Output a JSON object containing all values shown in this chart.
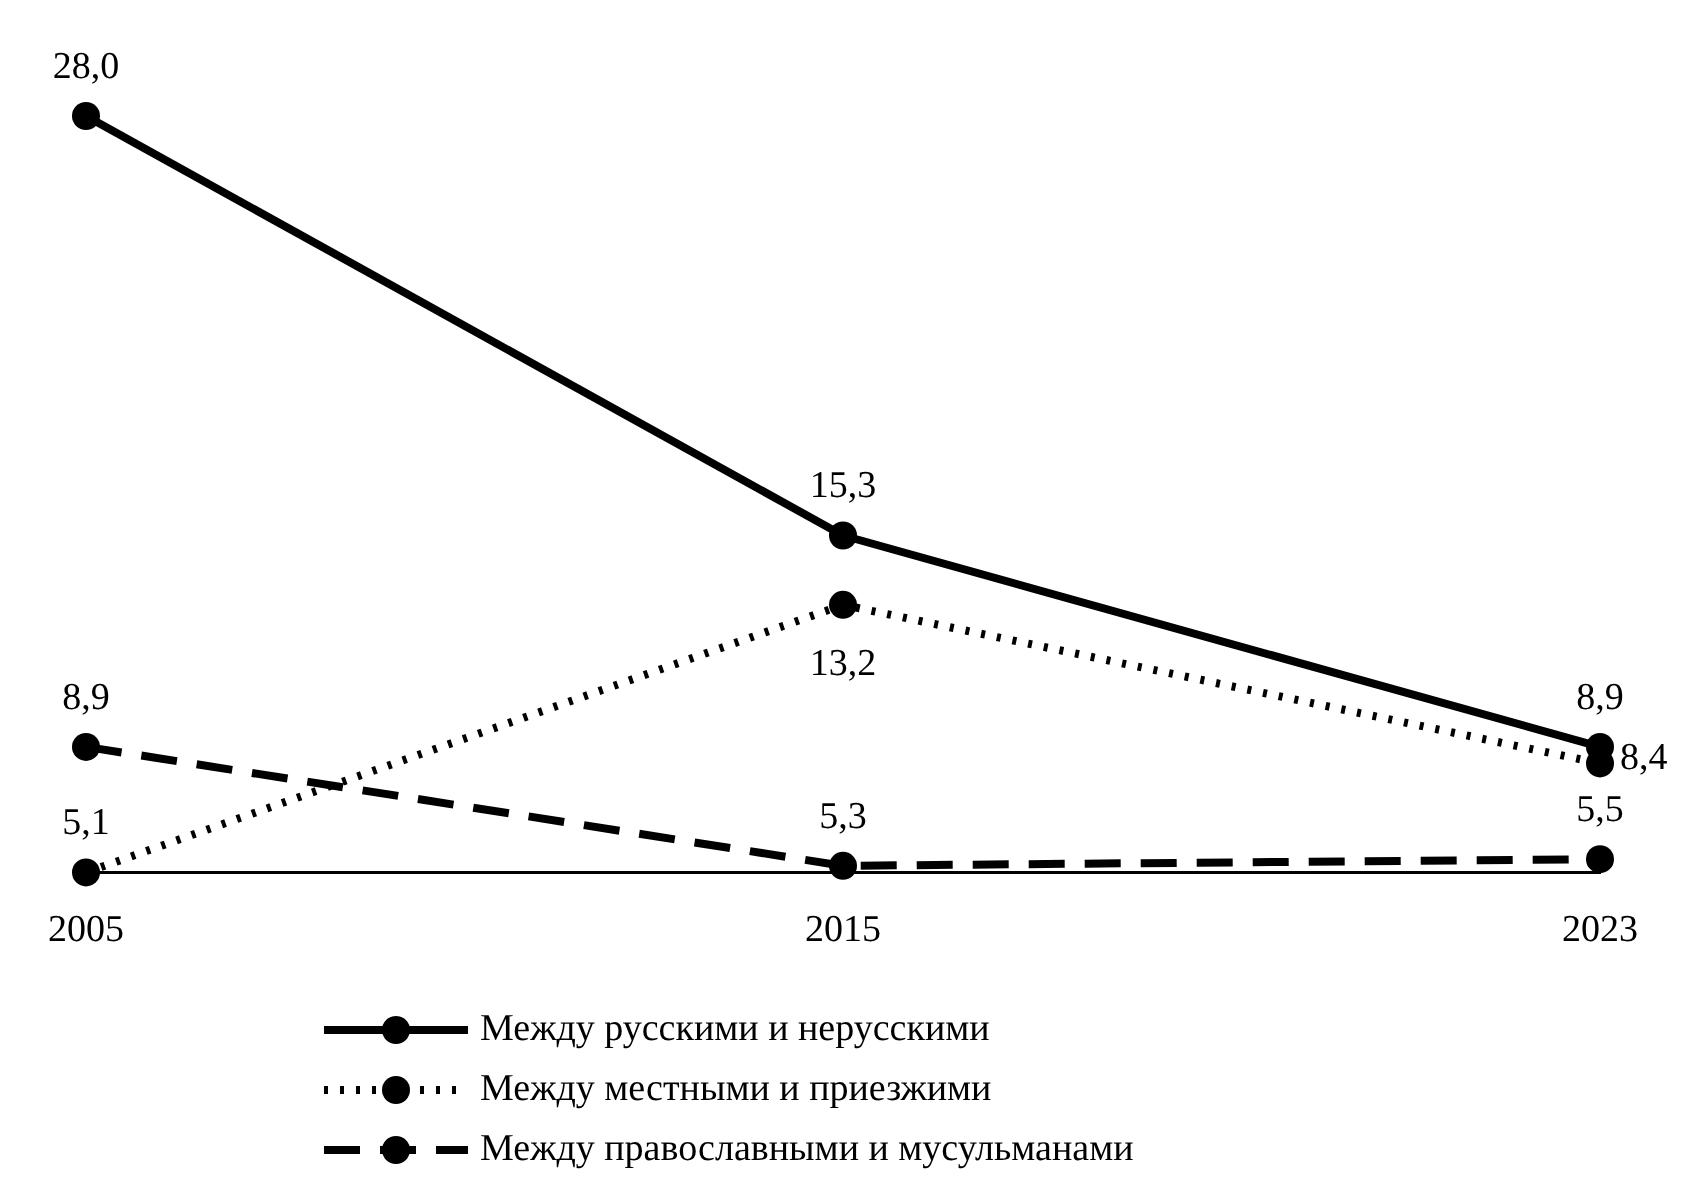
{
  "chart_data": {
    "type": "line",
    "categories": [
      "2005",
      "2015",
      "2023"
    ],
    "tick_labels": "x",
    "grid": false,
    "marker": "circle",
    "legend": "bottom",
    "series": [
      {
        "name": "Между русскими и нерусскими",
        "color": "#000000",
        "line_style": "solid",
        "values": [
          28.0,
          15.3,
          8.9
        ],
        "value_labels": [
          "28,0",
          "15,3",
          "8,9"
        ]
      },
      {
        "name": "Между местными и приезжими",
        "color": "#000000",
        "line_style": "dotted",
        "values": [
          5.1,
          13.2,
          8.4
        ],
        "value_labels": [
          "5,1",
          "13,2",
          "8,4"
        ]
      },
      {
        "name": "Между православными и мусульманами",
        "color": "#000000",
        "line_style": "dashed",
        "values": [
          8.9,
          5.3,
          5.5
        ],
        "value_labels": [
          "8,9",
          "5,3",
          "5,5"
        ]
      }
    ]
  }
}
